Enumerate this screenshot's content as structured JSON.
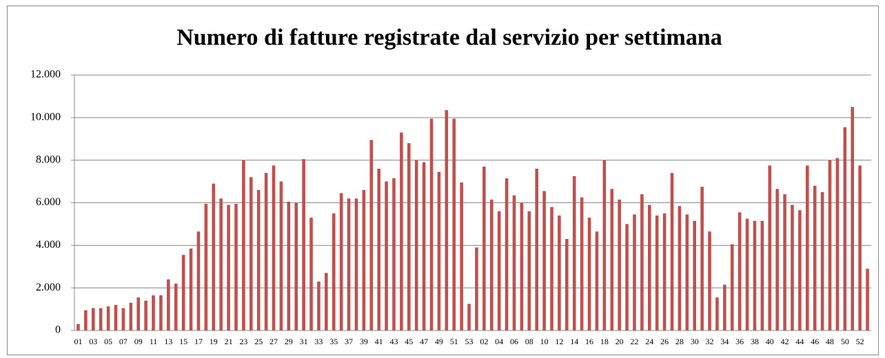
{
  "chart_data": {
    "type": "bar",
    "title": "Numero di fatture registrate dal servizio per settimana",
    "categories": [
      "01",
      null,
      "03",
      null,
      "05",
      null,
      "07",
      null,
      "09",
      null,
      "11",
      null,
      "13",
      null,
      "15",
      null,
      "17",
      null,
      "19",
      null,
      "21",
      null,
      "23",
      null,
      "25",
      null,
      "27",
      null,
      "29",
      null,
      "31",
      null,
      "33",
      null,
      "35",
      null,
      "37",
      null,
      "39",
      null,
      "41",
      null,
      "43",
      null,
      "45",
      null,
      "47",
      null,
      "49",
      null,
      "51",
      null,
      "53",
      null,
      "02",
      null,
      "04",
      null,
      "06",
      null,
      "08",
      null,
      "10",
      null,
      "12",
      null,
      "14",
      null,
      "16",
      null,
      "18",
      null,
      "20",
      null,
      "22",
      null,
      "24",
      null,
      "26",
      null,
      "28",
      null,
      "30",
      null,
      "32",
      null,
      "34",
      null,
      "36",
      null,
      "38",
      null,
      "40",
      null,
      "42",
      null,
      "44",
      null,
      "46",
      null,
      "48",
      null,
      "50",
      null,
      "52",
      null
    ],
    "values": [
      300,
      950,
      1050,
      1050,
      1130,
      1200,
      1050,
      1300,
      1550,
      1400,
      1650,
      1650,
      2400,
      2200,
      3550,
      3850,
      4650,
      5950,
      6900,
      6200,
      5900,
      5950,
      8000,
      7200,
      6600,
      7400,
      7750,
      7000,
      6050,
      6000,
      8050,
      5300,
      2300,
      2700,
      5500,
      6450,
      6200,
      6200,
      6600,
      8950,
      7600,
      7000,
      7150,
      9300,
      8800,
      8000,
      7900,
      9950,
      7450,
      10350,
      9950,
      6950,
      1250,
      3900,
      7700,
      6150,
      5600,
      7150,
      6350,
      6000,
      5600,
      7600,
      6550,
      5800,
      5400,
      4300,
      7250,
      6250,
      5300,
      4650,
      8000,
      6650,
      6150,
      5000,
      5450,
      6400,
      5900,
      5400,
      5500,
      7400,
      5850,
      5450,
      5150,
      6750,
      4650,
      1550,
      2150,
      4050,
      5550,
      5250,
      5150,
      5150,
      7750,
      6650,
      6400,
      5900,
      5650,
      7750,
      6800,
      6500,
      8000,
      8100,
      9550,
      10500,
      7750,
      2900
    ],
    "color": "#c0504d",
    "ylim": [
      0,
      12000
    ],
    "yticks": [
      0,
      {
        "value": 2000,
        "label": "2.000"
      },
      {
        "value": 4000,
        "label": "4.000"
      },
      {
        "value": 6000,
        "label": "6.000"
      },
      {
        "value": 8000,
        "label": "8.000"
      },
      {
        "value": 10000,
        "label": "10.000"
      },
      {
        "value": 12000,
        "label": "12.000"
      }
    ],
    "grid": true
  }
}
